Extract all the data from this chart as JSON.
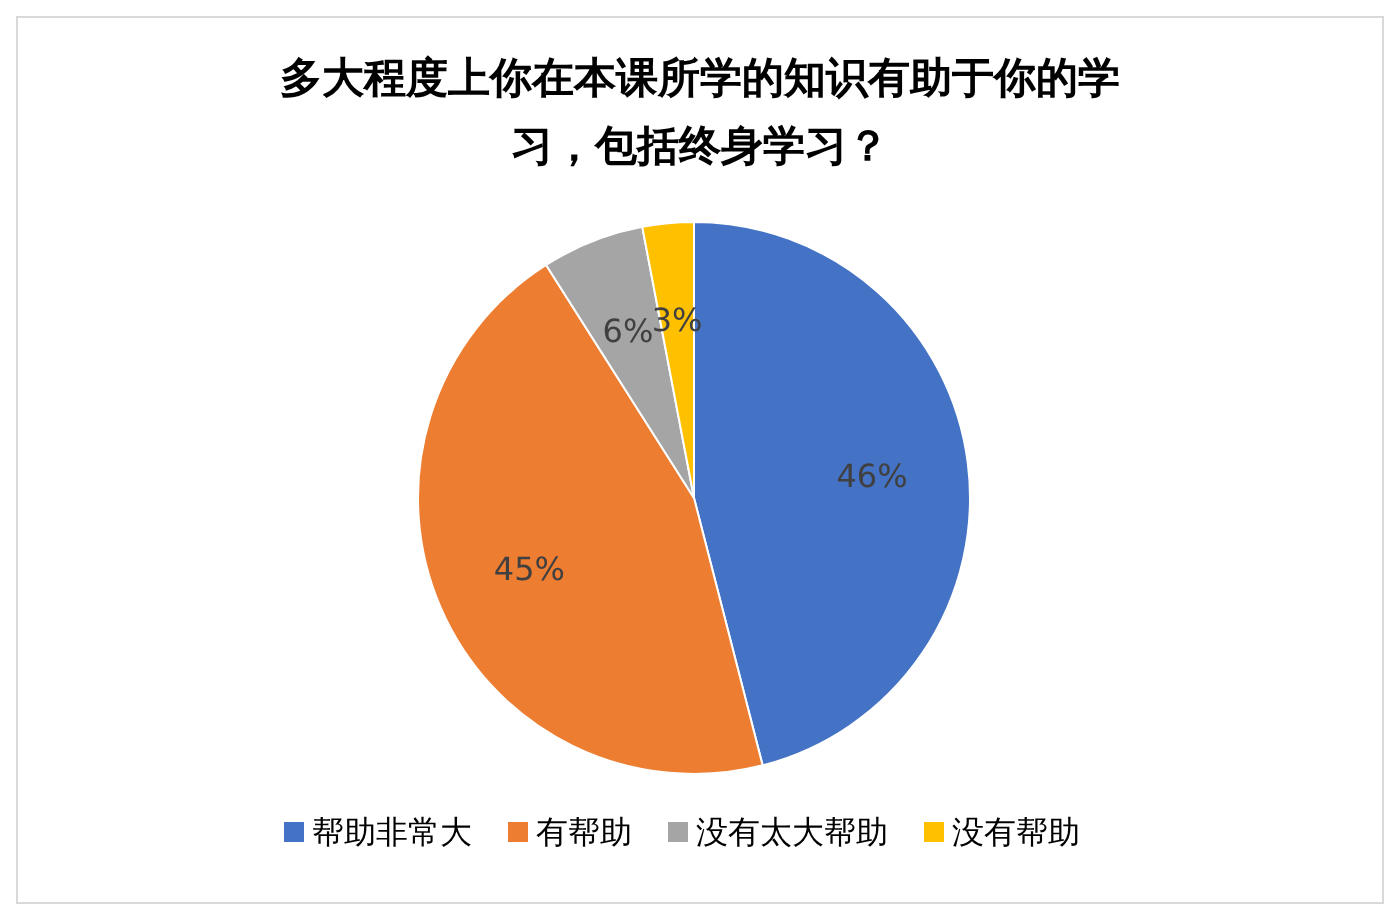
{
  "chart_data": {
    "type": "pie",
    "title": "多大程度上你在本课所学的知识有助于你的学习，包括终身学习？",
    "categories": [
      "帮助非常大",
      "有帮助",
      "没有太大帮助",
      "没有帮助"
    ],
    "values": [
      46,
      45,
      6,
      3
    ],
    "value_labels": [
      "46%",
      "45%",
      "6%",
      "3%"
    ],
    "colors": [
      "#4472c4",
      "#ed7d31",
      "#a5a5a5",
      "#ffc000"
    ],
    "legend": "bottom"
  }
}
